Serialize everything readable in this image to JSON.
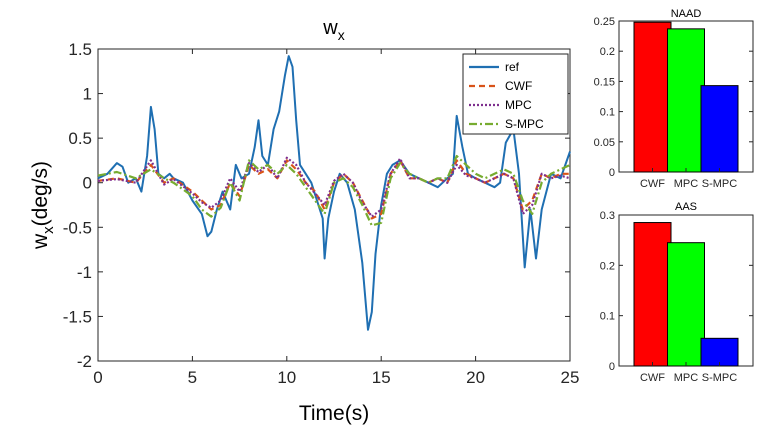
{
  "chart_data": [
    {
      "type": "line",
      "title": "w",
      "title_sub": "x",
      "xlabel": "Time(s)",
      "ylabel_main": "w",
      "ylabel_sub": "x",
      "ylabel_rest": "(deg/s)",
      "xlim": [
        0,
        25
      ],
      "ylim": [
        -2,
        1.5
      ],
      "xticks": [
        0,
        5,
        10,
        15,
        20,
        25
      ],
      "yticks": [
        -2,
        -1.5,
        -1,
        -0.5,
        0,
        0.5,
        1,
        1.5
      ],
      "ytick_labels": [
        "-2",
        "-1.5",
        "-1",
        "-0.5",
        "0",
        "0.5",
        "1",
        "1.5"
      ],
      "series": [
        {
          "name": "ref",
          "color": "#1f6fb2",
          "dash": "solid",
          "x": [
            0,
            0.5,
            1,
            1.3,
            1.6,
            2,
            2.3,
            2.6,
            2.8,
            3.0,
            3.2,
            3.5,
            3.8,
            4,
            4.5,
            5,
            5.5,
            5.8,
            6.0,
            6.3,
            6.6,
            7,
            7.3,
            7.6,
            8,
            8.3,
            8.5,
            8.7,
            9.0,
            9.3,
            9.6,
            9.9,
            10.1,
            10.3,
            10.5,
            10.7,
            11.0,
            11.3,
            11.6,
            11.9,
            12.0,
            12.2,
            12.5,
            12.8,
            13.2,
            13.6,
            14.0,
            14.3,
            14.5,
            14.7,
            15.0,
            15.3,
            15.6,
            16,
            16.5,
            17,
            17.5,
            18,
            18.5,
            18.8,
            19.0,
            19.3,
            19.6,
            20,
            20.5,
            21,
            21.3,
            21.6,
            22,
            22.3,
            22.6,
            22.9,
            23.2,
            23.5,
            24,
            24.5,
            25
          ],
          "y": [
            0.05,
            0.1,
            0.22,
            0.18,
            0.0,
            0.05,
            -0.1,
            0.3,
            0.85,
            0.6,
            0.1,
            0.05,
            0.1,
            0.05,
            0.0,
            -0.2,
            -0.35,
            -0.6,
            -0.55,
            -0.3,
            -0.1,
            -0.3,
            0.2,
            0.05,
            0.1,
            0.4,
            0.7,
            0.3,
            0.2,
            0.6,
            0.8,
            1.2,
            1.42,
            1.3,
            0.7,
            0.2,
            0.1,
            0.0,
            -0.2,
            -0.4,
            -0.85,
            -0.4,
            -0.1,
            0.1,
            0.0,
            -0.3,
            -0.9,
            -1.65,
            -1.45,
            -0.8,
            -0.25,
            0.1,
            0.2,
            0.25,
            0.1,
            0.05,
            0.0,
            -0.05,
            0.05,
            0.1,
            0.75,
            0.4,
            0.1,
            0.05,
            0.0,
            -0.05,
            0.0,
            0.45,
            0.6,
            0.1,
            -0.95,
            -0.3,
            -0.85,
            -0.3,
            0.1,
            0.05,
            0.35
          ]
        },
        {
          "name": "CWF",
          "color": "#d95319",
          "dash": "6,4",
          "x": [
            0,
            1,
            2,
            2.8,
            3.5,
            4,
            5,
            5.5,
            6,
            6.5,
            7,
            7.5,
            8,
            8.5,
            9,
            9.5,
            10,
            10.5,
            11,
            11.5,
            12,
            12.5,
            13,
            13.5,
            14,
            14.5,
            15,
            15.5,
            16,
            16.5,
            17,
            17.5,
            18,
            18.5,
            19,
            19.5,
            20,
            20.5,
            21,
            21.5,
            22,
            22.5,
            23,
            23.5,
            24,
            24.5,
            25
          ],
          "y": [
            0.02,
            0.05,
            0.0,
            0.2,
            0.0,
            0.05,
            -0.1,
            -0.2,
            -0.3,
            -0.25,
            0.0,
            -0.15,
            0.2,
            0.1,
            0.15,
            0.05,
            0.25,
            0.15,
            0.0,
            -0.1,
            -0.3,
            0.0,
            0.1,
            0.0,
            -0.2,
            -0.4,
            -0.35,
            0.1,
            0.25,
            0.05,
            0.05,
            0.0,
            0.05,
            0.0,
            0.25,
            0.1,
            0.05,
            0.0,
            0.05,
            0.1,
            0.05,
            -0.3,
            -0.2,
            0.1,
            0.05,
            0.1,
            0.1
          ]
        },
        {
          "name": "MPC",
          "color": "#7e2f8e",
          "dash": "2,2",
          "x": [
            0,
            1,
            2,
            2.8,
            3.5,
            4,
            5,
            5.5,
            6,
            6.5,
            7,
            7.5,
            8,
            8.5,
            9,
            9.5,
            10,
            10.5,
            11,
            11.5,
            12,
            12.5,
            13,
            13.5,
            14,
            14.5,
            15,
            15.5,
            16,
            16.5,
            17,
            17.5,
            18,
            18.5,
            19,
            19.5,
            20,
            20.5,
            21,
            21.5,
            22,
            22.5,
            23,
            23.5,
            24,
            24.5,
            25
          ],
          "y": [
            0.02,
            0.04,
            0.0,
            0.25,
            -0.02,
            0.04,
            -0.12,
            -0.22,
            -0.28,
            -0.2,
            0.05,
            -0.1,
            0.22,
            0.12,
            0.2,
            0.05,
            0.28,
            0.2,
            0.0,
            -0.12,
            -0.25,
            0.02,
            0.1,
            0.0,
            -0.22,
            -0.38,
            -0.3,
            0.1,
            0.27,
            0.05,
            0.05,
            0.0,
            0.05,
            0.0,
            0.2,
            0.08,
            0.05,
            0.0,
            0.05,
            0.1,
            0.05,
            -0.35,
            -0.25,
            0.1,
            0.05,
            0.08,
            0.05
          ]
        },
        {
          "name": "S-MPC",
          "color": "#77ac30",
          "dash": "8,3,2,3",
          "x": [
            0,
            1,
            2,
            2.8,
            3.5,
            4,
            5,
            5.5,
            6,
            6.5,
            7,
            7.5,
            8,
            8.5,
            9,
            9.5,
            10,
            10.5,
            11,
            11.5,
            12,
            12.5,
            13,
            13.5,
            14,
            14.5,
            15,
            15.5,
            16,
            16.5,
            17,
            17.5,
            18,
            18.5,
            19,
            19.5,
            20,
            20.5,
            21,
            21.5,
            22,
            22.5,
            23,
            23.5,
            24,
            24.5,
            25
          ],
          "y": [
            0.08,
            0.12,
            0.05,
            0.15,
            0.05,
            0.0,
            -0.15,
            -0.3,
            -0.38,
            -0.28,
            0.0,
            -0.2,
            0.25,
            0.15,
            0.2,
            0.1,
            0.2,
            0.1,
            -0.05,
            -0.2,
            -0.35,
            0.0,
            0.05,
            -0.05,
            -0.25,
            -0.48,
            -0.45,
            0.05,
            0.22,
            0.1,
            0.05,
            0.0,
            0.05,
            0.05,
            0.3,
            0.2,
            0.1,
            0.05,
            0.1,
            0.15,
            0.1,
            -0.2,
            -0.35,
            0.0,
            0.1,
            0.15,
            0.2
          ]
        }
      ]
    },
    {
      "type": "bar",
      "title": "NAAD",
      "categories": [
        "CWF",
        "MPC",
        "S-MPC"
      ],
      "values": [
        0.248,
        0.237,
        0.143
      ],
      "colors": [
        "#ff0000",
        "#00ff00",
        "#0000ff"
      ],
      "ylim": [
        0,
        0.25
      ],
      "yticks": [
        0,
        0.05,
        0.1,
        0.15,
        0.2,
        0.25
      ],
      "ytick_labels": [
        "0",
        "0.05",
        "0.1",
        "0.15",
        "0.2",
        "0.25"
      ]
    },
    {
      "type": "bar",
      "title": "AAS",
      "categories": [
        "CWF",
        "MPC",
        "S-MPC"
      ],
      "values": [
        0.285,
        0.245,
        0.055
      ],
      "colors": [
        "#ff0000",
        "#00ff00",
        "#0000ff"
      ],
      "ylim": [
        0,
        0.3
      ],
      "yticks": [
        0,
        0.1,
        0.2,
        0.3
      ],
      "ytick_labels": [
        "0",
        "0.1",
        "0.2",
        "0.3"
      ]
    }
  ]
}
